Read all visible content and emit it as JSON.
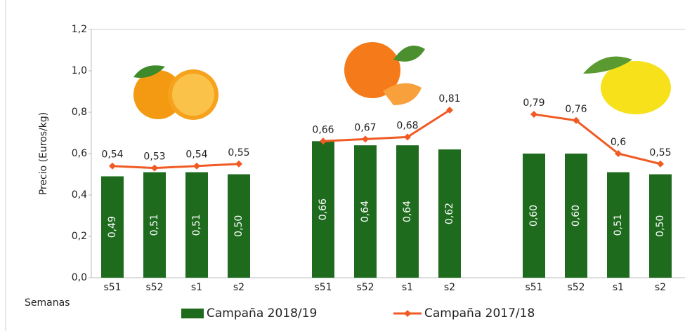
{
  "chart_data": {
    "type": "bar-line",
    "y_label": "Precio (Euros/kg)",
    "x_label": "Semanas",
    "categories": [
      "s51",
      "s52",
      "s1",
      "s2",
      null,
      "s51",
      "s52",
      "s1",
      "s2",
      null,
      "s51",
      "s52",
      "s1",
      "s2"
    ],
    "ylim": [
      0,
      1.2
    ],
    "yticks": [
      {
        "value": 0,
        "label": "0,0"
      },
      {
        "value": 0.2,
        "label": "0,2"
      },
      {
        "value": 0.4,
        "label": "0,4"
      },
      {
        "value": 0.6,
        "label": "0,6"
      },
      {
        "value": 0.8,
        "label": "0,8"
      },
      {
        "value": 1.0,
        "label": "1,0"
      },
      {
        "value": 1.2,
        "label": "1,2"
      }
    ],
    "grid": false,
    "legend": "bottom",
    "series": [
      {
        "name": "Campaña 2018/19",
        "color": "#1e6b1e",
        "kind": "bar",
        "values": [
          0.49,
          0.51,
          0.51,
          0.5,
          null,
          0.66,
          0.64,
          0.64,
          0.62,
          null,
          0.6,
          0.6,
          0.51,
          0.5
        ],
        "value_labels": [
          "0,49",
          "0,51",
          "0,51",
          "0,50",
          null,
          "0,66",
          "0,64",
          "0,64",
          "0,62",
          null,
          "0,60",
          "0,60",
          "0,51",
          "0,50"
        ]
      },
      {
        "name": "Campaña 2017/18",
        "color": "#f05a23",
        "kind": "line",
        "values": [
          0.54,
          0.53,
          0.54,
          0.55,
          null,
          0.66,
          0.67,
          0.68,
          0.81,
          null,
          0.79,
          0.76,
          0.6,
          0.55
        ],
        "value_labels": [
          "0,54",
          "0,53",
          "0,54",
          "0,55",
          null,
          "0,66",
          "0,67",
          "0,68",
          "0,81",
          null,
          "0,79",
          "0,76",
          "0,6",
          "0,55"
        ]
      }
    ]
  }
}
